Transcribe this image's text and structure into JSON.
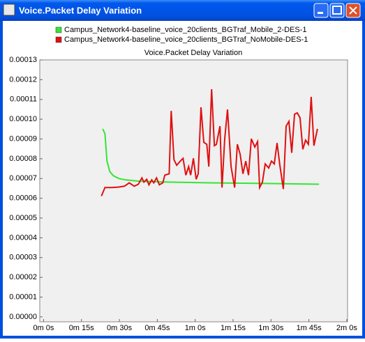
{
  "window": {
    "title": "Voice.Packet Delay Variation"
  },
  "chart_data": {
    "type": "line",
    "title": "Voice.Packet Delay Variation",
    "xlim": [
      -1.5,
      120.3
    ],
    "xticks": [
      {
        "value": 0,
        "label": "0m 0s"
      },
      {
        "value": 15,
        "label": "0m 15s"
      },
      {
        "value": 30,
        "label": "0m 30s"
      },
      {
        "value": 45,
        "label": "0m 45s"
      },
      {
        "value": 60,
        "label": "1m 0s"
      },
      {
        "value": 75,
        "label": "1m 15s"
      },
      {
        "value": 90,
        "label": "1m 30s"
      },
      {
        "value": 105,
        "label": "1m 45s"
      },
      {
        "value": 120,
        "label": "2m 0s"
      }
    ],
    "ylim": [
      -2.5e-06,
      0.00013
    ],
    "yticks": [
      {
        "value": 0,
        "label": "0.00000"
      },
      {
        "value": 1e-05,
        "label": "0.00001"
      },
      {
        "value": 2e-05,
        "label": "0.00002"
      },
      {
        "value": 3e-05,
        "label": "0.00003"
      },
      {
        "value": 4e-05,
        "label": "0.00004"
      },
      {
        "value": 5e-05,
        "label": "0.00005"
      },
      {
        "value": 6e-05,
        "label": "0.00006"
      },
      {
        "value": 7e-05,
        "label": "0.00007"
      },
      {
        "value": 8e-05,
        "label": "0.00008"
      },
      {
        "value": 9e-05,
        "label": "0.00009"
      },
      {
        "value": 0.0001,
        "label": "0.00010"
      },
      {
        "value": 0.00011,
        "label": "0.00011"
      },
      {
        "value": 0.00012,
        "label": "0.00012"
      },
      {
        "value": 0.00013,
        "label": "0.00013"
      }
    ],
    "grid": false,
    "series": [
      {
        "name": "Campus_Network4-baseline_voice_20clients_BGTraf_Mobile_2-DES-1",
        "color": "#33e633",
        "x": [
          23.4,
          24.3,
          25.1,
          26.2,
          27.6,
          29.8,
          32.6,
          38.1,
          49.1,
          65.7,
          87.7,
          109
        ],
        "values": [
          9.51e-05,
          9.26e-05,
          7.88e-05,
          7.35e-05,
          7.14e-05,
          7e-05,
          6.93e-05,
          6.86e-05,
          6.82e-05,
          6.78e-05,
          6.75e-05,
          6.71e-05
        ]
      },
      {
        "name": "Campus_Network4-baseline_voice_20clients_BGTraf_NoMobile-DES-1",
        "color": "#e01010",
        "x": [
          22.9,
          24.3,
          27.0,
          29.8,
          32.0,
          33.9,
          35.9,
          37.5,
          38.9,
          39.7,
          40.8,
          41.7,
          42.8,
          43.6,
          44.7,
          45.8,
          47.2,
          48.0,
          49.7,
          50.5,
          51.6,
          52.7,
          54.1,
          55.2,
          56.3,
          57.4,
          58.2,
          59.3,
          60.4,
          61.2,
          62.3,
          63.4,
          64.6,
          65.4,
          66.5,
          67.6,
          68.4,
          69.8,
          70.6,
          71.7,
          72.8,
          74.2,
          75.6,
          76.7,
          77.8,
          78.9,
          80.0,
          81.1,
          82.2,
          83.6,
          84.7,
          85.5,
          86.6,
          87.7,
          89.1,
          90.2,
          91.3,
          92.4,
          93.5,
          94.9,
          96.0,
          97.1,
          98.2,
          99.3,
          100.4,
          101.5,
          102.6,
          103.7,
          104.8,
          105.9,
          107.0,
          108.4
        ],
        "values": [
          6.11e-05,
          6.54e-05,
          6.54e-05,
          6.57e-05,
          6.61e-05,
          6.78e-05,
          6.61e-05,
          6.71e-05,
          7.03e-05,
          6.82e-05,
          6.96e-05,
          6.68e-05,
          6.93e-05,
          6.78e-05,
          7.03e-05,
          6.68e-05,
          6.78e-05,
          7.17e-05,
          7.24e-05,
          0.0001042,
          7.95e-05,
          7.67e-05,
          7.88e-05,
          8.02e-05,
          7.17e-05,
          7.6e-05,
          7.17e-05,
          8.02e-05,
          6.96e-05,
          7.24e-05,
          0.000106,
          8.83e-05,
          8.73e-05,
          7.6e-05,
          0.0001152,
          8.66e-05,
          8.73e-05,
          9.65e-05,
          6.54e-05,
          9.01e-05,
          0.0001049,
          7.6e-05,
          6.54e-05,
          8.73e-05,
          8.23e-05,
          7.24e-05,
          7.88e-05,
          7.17e-05,
          9.01e-05,
          8.59e-05,
          8.87e-05,
          6.54e-05,
          6.82e-05,
          7.74e-05,
          7.53e-05,
          7.88e-05,
          7.74e-05,
          8.8e-05,
          7.67e-05,
          6.47e-05,
          9.65e-05,
          9.89e-05,
          8.3e-05,
          0.0001025,
          0.0001032,
          0.0001007,
          8.48e-05,
          8.94e-05,
          8.73e-05,
          0.0001113,
          8.66e-05,
          9.51e-05
        ]
      }
    ]
  }
}
